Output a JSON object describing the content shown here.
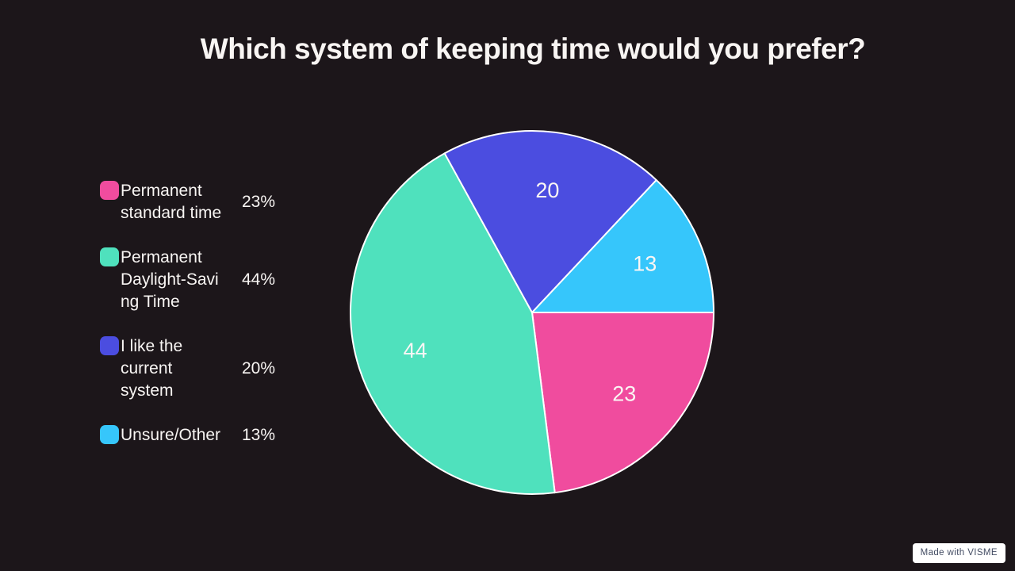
{
  "title": "Which system of keeping time would you prefer?",
  "chart_data": {
    "type": "pie",
    "title": "Which system of keeping time would you prefer?",
    "categories": [
      "Permanent standard time",
      "Permanent Daylight-Saving Time",
      "I like the current system",
      "Unsure/Other"
    ],
    "values": [
      23,
      44,
      20,
      13
    ],
    "unit": "%",
    "colors": [
      "#f04c9e",
      "#4fe1bd",
      "#4b4de0",
      "#36c6fb"
    ],
    "slice_labels": [
      "23",
      "44",
      "20",
      "13"
    ],
    "legend_position": "left",
    "start_angle_deg_from_east": 0,
    "direction": "clockwise",
    "separator_color": "#ffffff",
    "background_color": "#1c161a"
  },
  "legend": {
    "items": [
      {
        "label": "Permanent\nstandard time",
        "value": "23%",
        "color": "#f04c9e"
      },
      {
        "label": "Permanent\nDaylight-Savi\nng Time",
        "value": "44%",
        "color": "#4fe1bd"
      },
      {
        "label": "I like the\ncurrent\nsystem",
        "value": "20%",
        "color": "#4b4de0"
      },
      {
        "label": "Unsure/Other",
        "value": "13%",
        "color": "#36c6fb"
      }
    ]
  },
  "badge": {
    "label": "Made with VISME"
  },
  "colors": {
    "background": "#1c161a",
    "text": "#f8f5f3",
    "slice_label": "#faf6f4",
    "badge_bg": "#ffffff",
    "badge_text": "#434c63"
  }
}
